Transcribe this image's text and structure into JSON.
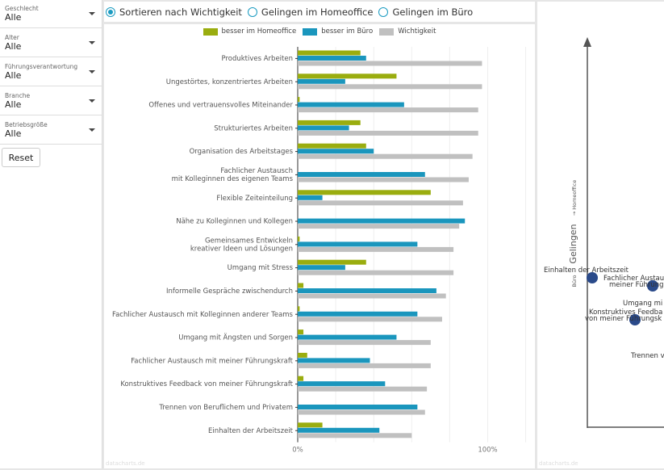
{
  "filters": [
    {
      "label": "Geschlecht",
      "value": "Alle"
    },
    {
      "label": "Alter",
      "value": "Alle"
    },
    {
      "label": "Führungsverantwortung",
      "value": "Alle"
    },
    {
      "label": "Branche",
      "value": "Alle"
    },
    {
      "label": "Betriebsgröße",
      "value": "Alle"
    }
  ],
  "reset_label": "Reset",
  "sort_options": [
    "Sortieren nach Wichtigkeit",
    "Gelingen im Homeoffice",
    "Gelingen im Büro"
  ],
  "sort_selected": 0,
  "watermark": "datacharts.de",
  "chart_data": [
    {
      "type": "bar",
      "orientation": "horizontal",
      "legend": [
        "besser im Homeoffice",
        "besser im Büro",
        "Wichtigkeit"
      ],
      "colors": {
        "homeoffice": "#9aad0f",
        "buero": "#1a96bd",
        "wichtigkeit": "#c0c0c0"
      },
      "categories": [
        "Produktives Arbeiten",
        "Ungestörtes, konzentriertes Arbeiten",
        "Offenes und vertrauensvolles Miteinander",
        "Strukturiertes Arbeiten",
        "Organisation des Arbeitstages",
        "Fachlicher Austausch\nmit Kolleginnen des eigenen Teams",
        "Flexible Zeiteinteilung",
        "Nähe zu Kolleginnen und Kollegen",
        "Gemeinsames Entwickeln\nkreativer Ideen und Lösungen",
        "Umgang mit Stress",
        "Informelle Gespräche zwischendurch",
        "Fachlicher Austausch mit Kolleginnen anderer Teams",
        "Umgang mit Ängsten und Sorgen",
        "Fachlicher Austausch mit meiner Führungskraft",
        "Konstruktives Feedback von meiner Führungskraft",
        "Trennen von Beruflichem und Privatem",
        "Einhalten der Arbeitszeit"
      ],
      "series": [
        {
          "name": "besser im Homeoffice",
          "values": [
            33,
            52,
            1,
            33,
            36,
            0,
            70,
            0,
            1,
            36,
            3,
            1,
            3,
            5,
            3,
            0,
            13
          ]
        },
        {
          "name": "besser im Büro",
          "values": [
            36,
            25,
            56,
            27,
            40,
            67,
            13,
            88,
            63,
            25,
            73,
            63,
            52,
            38,
            46,
            63,
            43
          ]
        },
        {
          "name": "Wichtigkeit",
          "values": [
            97,
            97,
            95,
            95,
            92,
            90,
            87,
            85,
            82,
            82,
            78,
            76,
            70,
            70,
            68,
            67,
            60
          ]
        }
      ],
      "xticks": [
        "0%",
        "100%"
      ],
      "xlim": [
        0,
        124
      ]
    },
    {
      "type": "scatter",
      "ylabel": "Gelingen",
      "ylabel_up": "→ Homeoffice",
      "ylabel_down": "Büro",
      "points": [
        {
          "label": "Einhalten der Arbeitszeit",
          "dot": true
        },
        {
          "label": "Fachlicher Austau",
          "dot": true
        },
        {
          "label": "meiner Führung",
          "dot": false
        },
        {
          "label": "Umgang mi",
          "dot": false
        },
        {
          "label": "Konstruktives Feedba",
          "dot": true
        },
        {
          "label": "von meiner Führungsk",
          "dot": false
        },
        {
          "label": "Trennen v",
          "dot": false
        }
      ]
    }
  ]
}
